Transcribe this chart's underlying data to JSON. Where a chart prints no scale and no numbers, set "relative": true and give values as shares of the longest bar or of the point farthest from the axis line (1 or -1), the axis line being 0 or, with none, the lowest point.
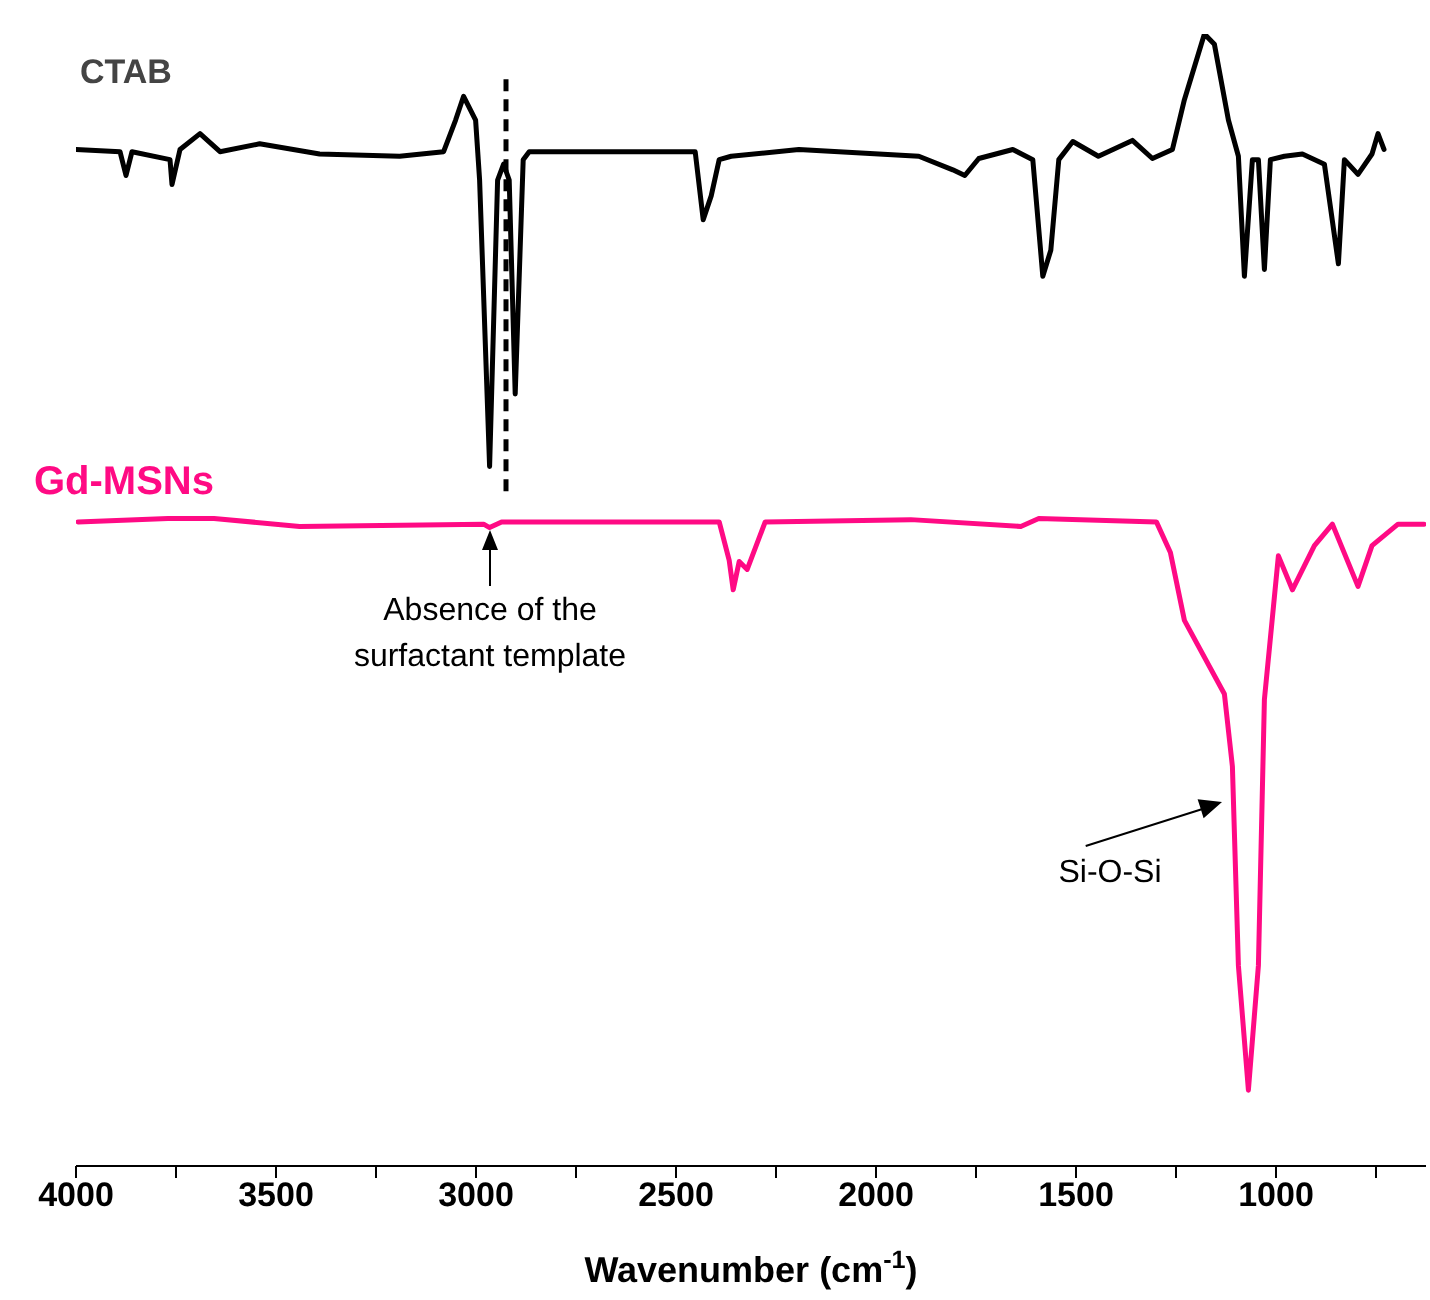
{
  "chart_data": {
    "type": "line",
    "relative": true,
    "xlabel": "Wavenumber (cm$^{-1}$)",
    "xlim": [
      4000,
      625
    ],
    "xticks": [
      4000,
      {
        "value": 3750,
        "label": null
      },
      3500,
      {
        "value": 3250,
        "label": null
      },
      3000,
      {
        "value": 2750,
        "label": null
      },
      2500,
      {
        "value": 2250,
        "label": null
      },
      2000,
      {
        "value": 1750,
        "label": null
      },
      1500,
      {
        "value": 1250,
        "label": null
      },
      1000,
      {
        "value": 750,
        "label": null
      }
    ],
    "series": [
      {
        "name": "CTAB",
        "color": "#000000",
        "x": [
          4000,
          3890,
          3875,
          3860,
          3765,
          3760,
          3740,
          3690,
          3640,
          3541,
          3391,
          3191,
          3081,
          3051,
          3031,
          3001,
          2991,
          2966,
          2946,
          2931,
          2917,
          2902,
          2882,
          2867,
          2692,
          2452,
          2432,
          2412,
          2392,
          2362,
          2193,
          1893,
          1808,
          1778,
          1743,
          1658,
          1608,
          1583,
          1563,
          1543,
          1508,
          1444,
          1359,
          1309,
          1259,
          1229,
          1179,
          1154,
          1119,
          1094,
          1079,
          1059,
          1044,
          1029,
          1014,
          979,
          934,
          879,
          844,
          829,
          795,
          760,
          745,
          730
        ],
        "values": [
          0.898,
          0.896,
          0.875,
          0.896,
          0.889,
          0.867,
          0.898,
          0.912,
          0.896,
          0.903,
          0.894,
          0.892,
          0.896,
          0.924,
          0.945,
          0.924,
          0.871,
          0.618,
          0.871,
          0.885,
          0.871,
          0.682,
          0.889,
          0.896,
          0.896,
          0.896,
          0.836,
          0.857,
          0.889,
          0.892,
          0.898,
          0.892,
          0.88,
          0.875,
          0.89,
          0.898,
          0.889,
          0.786,
          0.809,
          0.889,
          0.905,
          0.892,
          0.906,
          0.89,
          0.898,
          0.942,
          1,
          0.991,
          0.924,
          0.892,
          0.786,
          0.889,
          0.889,
          0.792,
          0.889,
          0.892,
          0.894,
          0.885,
          0.797,
          0.889,
          0.876,
          0.894,
          0.912,
          0.898
        ]
      },
      {
        "name": "Gd-MSNs",
        "color": "#ff0a84",
        "x": [
          3995,
          3770,
          3655,
          3441,
          2981,
          2966,
          2936,
          2392,
          2367,
          2357,
          2342,
          2322,
          2277,
          1913,
          1638,
          1593,
          1299,
          1264,
          1229,
          1129,
          1109,
          1094,
          1069,
          1044,
          1029,
          994,
          959,
          904,
          859,
          795,
          760,
          695,
          630
        ],
        "values": [
          0.569,
          0.572,
          0.572,
          0.565,
          0.567,
          0.564,
          0.569,
          0.569,
          0.535,
          0.509,
          0.534,
          0.527,
          0.569,
          0.571,
          0.565,
          0.572,
          0.569,
          0.542,
          0.482,
          0.417,
          0.353,
          0.177,
          0.067,
          0.177,
          0.412,
          0.539,
          0.509,
          0.548,
          0.567,
          0.512,
          0.548,
          0.567,
          0.567
        ]
      }
    ],
    "ref_lines": [
      {
        "axis": "x",
        "value": 2925,
        "color": "#000000",
        "line_style": "dashed"
      }
    ],
    "annotations": [
      "Absence of the surfactant template",
      "Si-O-Si"
    ]
  }
}
